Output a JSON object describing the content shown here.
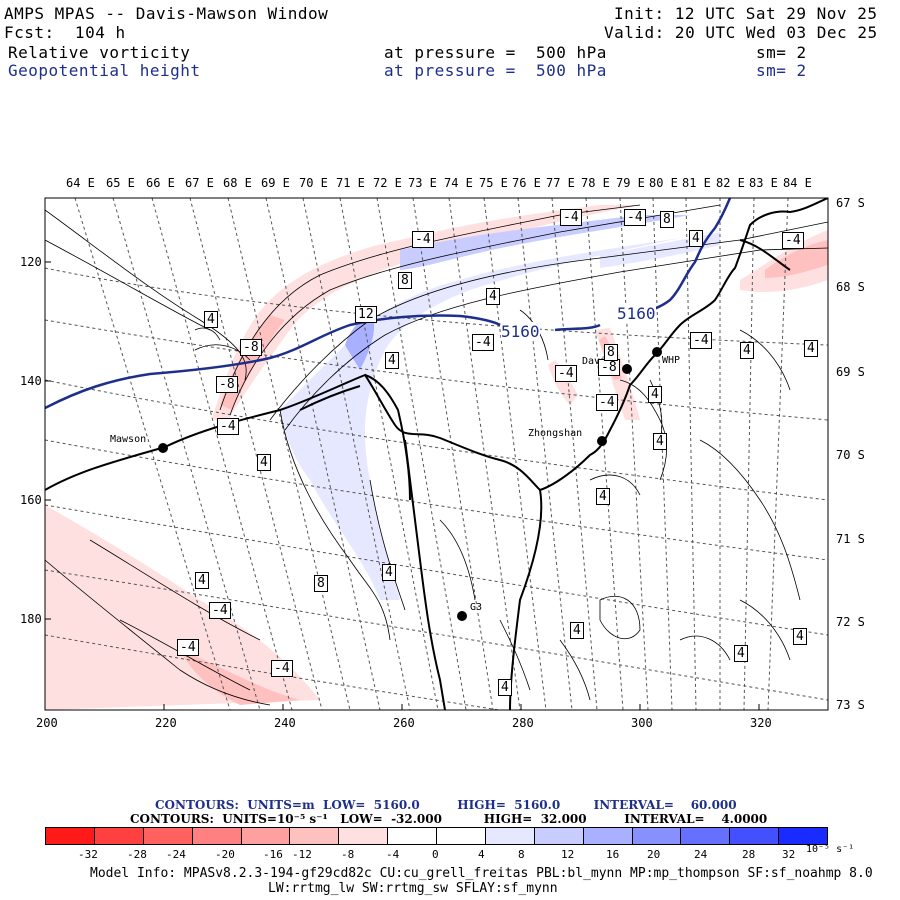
{
  "header": {
    "title": "AMPS MPAS -- Davis-Mawson Window",
    "forecast": "Fcst:  104 h",
    "init": "Init: 12 UTC Sat 29 Nov 25",
    "valid": "Valid: 20 UTC Wed 03 Dec 25",
    "field1": {
      "name": "Relative vorticity",
      "level": "at pressure =  500 hPa",
      "sm": "sm= 2"
    },
    "field2": {
      "name": "Geopotential height",
      "level": "at pressure =  500 hPa",
      "sm": "sm= 2"
    }
  },
  "map": {
    "longitude_labels": [
      "64 E",
      "65 E",
      "66 E",
      "67 E",
      "68 E",
      "69 E",
      "70 E",
      "71 E",
      "72 E",
      "73 E",
      "74 E",
      "75 E",
      "76 E",
      "77 E",
      "78 E",
      "79 E",
      "80 E",
      "81 E",
      "82 E",
      "83 E",
      "84 E"
    ],
    "latitude_labels": [
      "67 S",
      "68 S",
      "69 S",
      "70 S",
      "71 S",
      "72 S",
      "73 S"
    ],
    "x_ticks": [
      "200",
      "220",
      "240",
      "260",
      "280",
      "300",
      "320"
    ],
    "y_ticks": [
      "120",
      "140",
      "160",
      "180"
    ],
    "stations": [
      {
        "name": "Mawson"
      },
      {
        "name": "Davis"
      },
      {
        "name": "WHP"
      },
      {
        "name": "Zhongshan"
      },
      {
        "name": "G3"
      }
    ],
    "height_contour_labels": [
      "5160",
      "5160"
    ],
    "vorticity_labels": [
      "-4",
      "4",
      "8",
      "-4",
      "-4",
      "8",
      "4",
      "12",
      "-4",
      "4",
      "-4",
      "-8",
      "-8",
      "-4",
      "4",
      "-4",
      "-4",
      "-8",
      "4",
      "-4",
      "-4",
      "4",
      "4",
      "4",
      "4",
      "8",
      "-4",
      "-4",
      "4",
      "4",
      "4",
      "4",
      "4",
      "4",
      "4",
      "8"
    ]
  },
  "contour_info": {
    "line1": "CONTOURS:  UNITS=m  LOW=  5160.0         HIGH=  5160.0        INTERVAL=    60.000",
    "line2": "CONTOURS:  UNITS=10⁻⁵ s⁻¹   LOW=  -32.000          HIGH=  32.000         INTERVAL=    4.0000"
  },
  "colorbar": {
    "colors": [
      "#ff1a1a",
      "#ff4040",
      "#ff6060",
      "#ff8080",
      "#ffa0a0",
      "#ffc0c0",
      "#ffe0e0",
      "#ffffff",
      "#ffffff",
      "#e6e8ff",
      "#c8ccff",
      "#a8b0ff",
      "#8890ff",
      "#6670ff",
      "#4450ff",
      "#1a2bff"
    ],
    "labels": [
      "-32",
      "-28",
      "-24",
      "-20",
      "-16",
      "-12",
      "-8",
      "-4",
      "0",
      "4",
      "8",
      "12",
      "16",
      "20",
      "24",
      "28",
      "32"
    ],
    "units": "10⁻⁵ s⁻¹"
  },
  "footer": {
    "line1": "Model Info: MPASv8.2.3-194-gf29cd82c CU:cu_grell_freitas PBL:bl_mynn MP:mp_thompson SF:sf_noahmp 8.0",
    "line2": "LW:rrtmg_lw SW:rrtmg_sw SFLAY:sf_mynn"
  }
}
